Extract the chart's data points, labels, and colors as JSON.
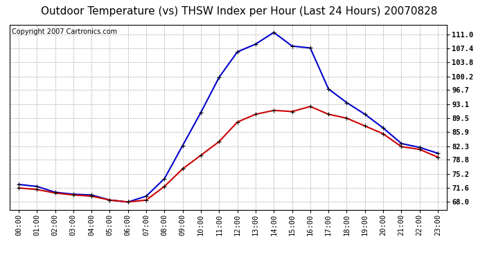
{
  "title": "Outdoor Temperature (vs) THSW Index per Hour (Last 24 Hours) 20070828",
  "copyright": "Copyright 2007 Cartronics.com",
  "hours": [
    "00:00",
    "01:00",
    "02:00",
    "03:00",
    "04:00",
    "05:00",
    "06:00",
    "07:00",
    "08:00",
    "09:00",
    "10:00",
    "11:00",
    "12:00",
    "13:00",
    "14:00",
    "15:00",
    "16:00",
    "17:00",
    "18:00",
    "19:00",
    "20:00",
    "21:00",
    "22:00",
    "23:00"
  ],
  "temp": [
    71.6,
    71.2,
    70.3,
    69.8,
    69.5,
    68.5,
    68.0,
    68.5,
    72.0,
    76.5,
    80.0,
    83.5,
    88.5,
    90.5,
    91.5,
    91.2,
    92.5,
    90.5,
    89.5,
    87.5,
    85.5,
    82.2,
    81.5,
    79.5
  ],
  "thsw": [
    72.5,
    72.0,
    70.5,
    70.0,
    69.8,
    68.5,
    68.0,
    69.5,
    74.0,
    82.5,
    91.0,
    100.0,
    106.5,
    108.5,
    111.5,
    108.0,
    107.5,
    97.0,
    93.5,
    90.5,
    87.0,
    83.0,
    82.0,
    80.5
  ],
  "temp_color": "#cc0000",
  "thsw_color": "#0000cc",
  "bg_color": "#ffffff",
  "grid_color": "#aaaaaa",
  "yticks": [
    68.0,
    71.6,
    75.2,
    78.8,
    82.3,
    85.9,
    89.5,
    93.1,
    96.7,
    100.2,
    103.8,
    107.4,
    111.0
  ],
  "ylim": [
    66.0,
    113.5
  ],
  "title_fontsize": 11,
  "copyright_fontsize": 7,
  "tick_fontsize": 7.5,
  "marker_size": 5,
  "line_width": 1.5
}
